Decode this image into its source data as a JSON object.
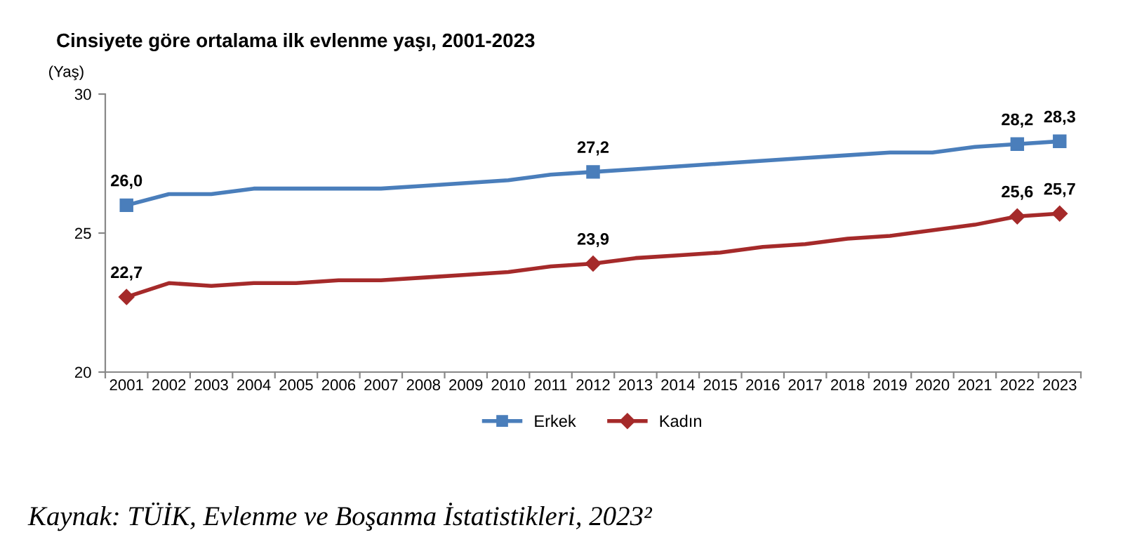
{
  "chart_data": {
    "type": "line",
    "title": "Cinsiyete göre ortalama ilk evlenme yaşı, 2001-2023",
    "ylabel": "(Yaş)",
    "categories": [
      "2001",
      "2002",
      "2003",
      "2004",
      "2005",
      "2006",
      "2007",
      "2008",
      "2009",
      "2010",
      "2011",
      "2012",
      "2013",
      "2014",
      "2015",
      "2016",
      "2017",
      "2018",
      "2019",
      "2020",
      "2021",
      "2022",
      "2023"
    ],
    "series": [
      {
        "name": "Erkek",
        "color": "#4a7ebb",
        "values": [
          26.0,
          26.4,
          26.4,
          26.6,
          26.6,
          26.6,
          26.6,
          26.7,
          26.8,
          26.9,
          27.1,
          27.2,
          27.3,
          27.4,
          27.5,
          27.6,
          27.7,
          27.8,
          27.9,
          27.9,
          28.1,
          28.2,
          28.3
        ],
        "value_labels": [
          "26,0",
          null,
          null,
          null,
          null,
          null,
          null,
          null,
          null,
          null,
          null,
          "27,2",
          null,
          null,
          null,
          null,
          null,
          null,
          null,
          null,
          null,
          "28,2",
          "28,3"
        ]
      },
      {
        "name": "Kadın",
        "color": "#a52a2a",
        "values": [
          22.7,
          23.2,
          23.1,
          23.2,
          23.2,
          23.3,
          23.3,
          23.4,
          23.5,
          23.6,
          23.8,
          23.9,
          24.1,
          24.2,
          24.3,
          24.5,
          24.6,
          24.8,
          24.9,
          25.1,
          25.3,
          25.6,
          25.7
        ],
        "value_labels": [
          "22,7",
          null,
          null,
          null,
          null,
          null,
          null,
          null,
          null,
          null,
          null,
          "23,9",
          null,
          null,
          null,
          null,
          null,
          null,
          null,
          null,
          null,
          "25,6",
          "25,7"
        ]
      }
    ],
    "ylim": [
      20,
      30
    ],
    "yticks": [
      20,
      25,
      30
    ],
    "grid": false,
    "legend": "bottom",
    "line_style": "solid",
    "annotations": [
      "Kaynak: TÜİK, Evlenme ve Boşanma İstatistikleri, 2023²"
    ]
  }
}
